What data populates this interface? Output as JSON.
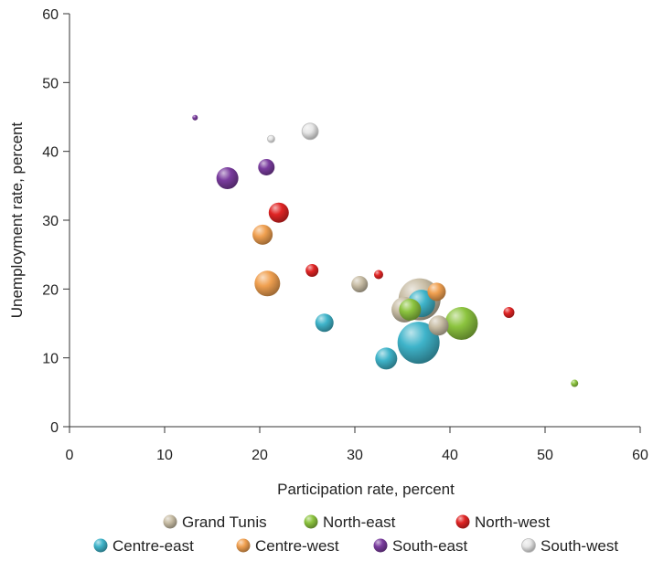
{
  "chart_data": {
    "type": "scatter",
    "title": "",
    "xlabel": "Participation rate, percent",
    "ylabel": "Unemployment rate, percent",
    "xlim": [
      0,
      60
    ],
    "ylim": [
      0,
      60
    ],
    "xticks": [
      0,
      10,
      20,
      30,
      40,
      50,
      60
    ],
    "yticks": [
      0,
      10,
      20,
      30,
      40,
      50,
      60
    ],
    "grid": false,
    "legend_position": "bottom",
    "series": [
      {
        "name": "Grand Tunis",
        "color": "#c8bda5",
        "points": [
          {
            "x": 36.8,
            "y": 18.5,
            "r": 23
          },
          {
            "x": 35.2,
            "y": 17.0,
            "r": 14
          },
          {
            "x": 38.8,
            "y": 14.7,
            "r": 11
          },
          {
            "x": 30.5,
            "y": 20.7,
            "r": 9
          }
        ]
      },
      {
        "name": "North-east",
        "color": "#8cc43f",
        "points": [
          {
            "x": 41.2,
            "y": 15.0,
            "r": 18
          },
          {
            "x": 35.8,
            "y": 17.0,
            "r": 12
          },
          {
            "x": 53.1,
            "y": 6.3,
            "r": 4
          }
        ]
      },
      {
        "name": "North-west",
        "color": "#e02424",
        "points": [
          {
            "x": 22.0,
            "y": 31.1,
            "r": 11
          },
          {
            "x": 25.5,
            "y": 22.7,
            "r": 7
          },
          {
            "x": 32.5,
            "y": 22.1,
            "r": 5
          },
          {
            "x": 46.2,
            "y": 16.6,
            "r": 6
          }
        ]
      },
      {
        "name": "Centre-east",
        "color": "#3fb4ca",
        "points": [
          {
            "x": 36.7,
            "y": 12.2,
            "r": 23
          },
          {
            "x": 37.0,
            "y": 17.9,
            "r": 15
          },
          {
            "x": 33.3,
            "y": 9.9,
            "r": 12
          },
          {
            "x": 26.8,
            "y": 15.1,
            "r": 10
          }
        ]
      },
      {
        "name": "Centre-west",
        "color": "#f0a050",
        "points": [
          {
            "x": 20.8,
            "y": 20.8,
            "r": 14
          },
          {
            "x": 20.3,
            "y": 27.9,
            "r": 11
          },
          {
            "x": 38.6,
            "y": 19.6,
            "r": 10
          }
        ]
      },
      {
        "name": "South-east",
        "color": "#7a3c9e",
        "points": [
          {
            "x": 16.6,
            "y": 36.1,
            "r": 12
          },
          {
            "x": 20.7,
            "y": 37.7,
            "r": 9
          },
          {
            "x": 13.2,
            "y": 44.9,
            "r": 3
          }
        ]
      },
      {
        "name": "South-west",
        "color": "#e6e6e6",
        "points": [
          {
            "x": 25.3,
            "y": 42.9,
            "r": 9
          },
          {
            "x": 21.2,
            "y": 41.8,
            "r": 4
          }
        ]
      }
    ]
  }
}
